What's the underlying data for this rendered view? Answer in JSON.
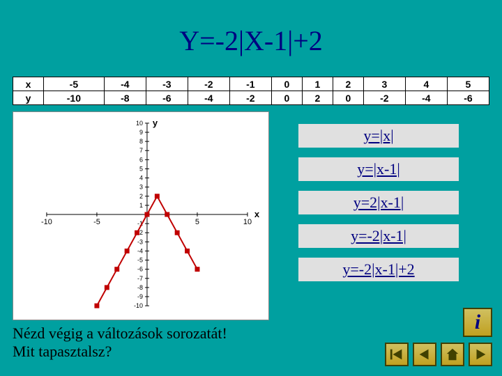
{
  "background_color": "#00a0a0",
  "title": "Y=-2|X-1|+2",
  "title_color": "#000080",
  "table": {
    "row_labels": [
      "x",
      "y"
    ],
    "columns": [
      {
        "x": "-5",
        "y": "-10"
      },
      {
        "x": "-4",
        "y": "-8"
      },
      {
        "x": "-3",
        "y": "-6"
      },
      {
        "x": "-2",
        "y": "-4"
      },
      {
        "x": "-1",
        "y": "-2"
      },
      {
        "x": "0",
        "y": "0"
      },
      {
        "x": "1",
        "y": "2"
      },
      {
        "x": "2",
        "y": "0"
      },
      {
        "x": "3",
        "y": "-2"
      },
      {
        "x": "4",
        "y": "-4"
      },
      {
        "x": "5",
        "y": "-6"
      }
    ]
  },
  "equations": [
    {
      "label": "y=|x|"
    },
    {
      "label": "y=|x-1|"
    },
    {
      "label": "y=2|x-1|"
    },
    {
      "label": "y=-2|x-1|"
    },
    {
      "label": "y=-2|x-1|+2"
    }
  ],
  "prompt_line1": "Nézd végig a változások sorozatát!",
  "prompt_line2": " Mit tapasztalsz?",
  "chart": {
    "type": "scatter-line",
    "xlim": [
      -10,
      10
    ],
    "ylim": [
      -10,
      10
    ],
    "xticks": [
      -10,
      -5,
      0,
      5,
      10
    ],
    "yticks": [
      -10,
      -9,
      -8,
      -7,
      -6,
      -5,
      -4,
      -3,
      -2,
      -1,
      0,
      1,
      2,
      3,
      4,
      5,
      6,
      7,
      8,
      9,
      10
    ],
    "xtick_labels": [
      "-10",
      "-5",
      "",
      "5",
      "10"
    ],
    "xlabel": "x",
    "ylabel": "y",
    "tick_fontsize": 9,
    "axis_label_fontsize": 13,
    "marker_color": "#c00000",
    "marker_size": 6,
    "line_color": "#c00000",
    "line_width": 2,
    "tick_color": "#000000",
    "background_color": "#ffffff",
    "points": [
      {
        "x": -5,
        "y": -10
      },
      {
        "x": -4,
        "y": -8
      },
      {
        "x": -3,
        "y": -6
      },
      {
        "x": -2,
        "y": -4
      },
      {
        "x": -1,
        "y": -2
      },
      {
        "x": 0,
        "y": 0
      },
      {
        "x": 1,
        "y": 2
      },
      {
        "x": 2,
        "y": 0
      },
      {
        "x": 3,
        "y": -2
      },
      {
        "x": 4,
        "y": -4
      },
      {
        "x": 5,
        "y": -6
      }
    ]
  },
  "icons": {
    "info": "i",
    "first": "first",
    "prev": "prev",
    "home": "home",
    "next": "next"
  }
}
